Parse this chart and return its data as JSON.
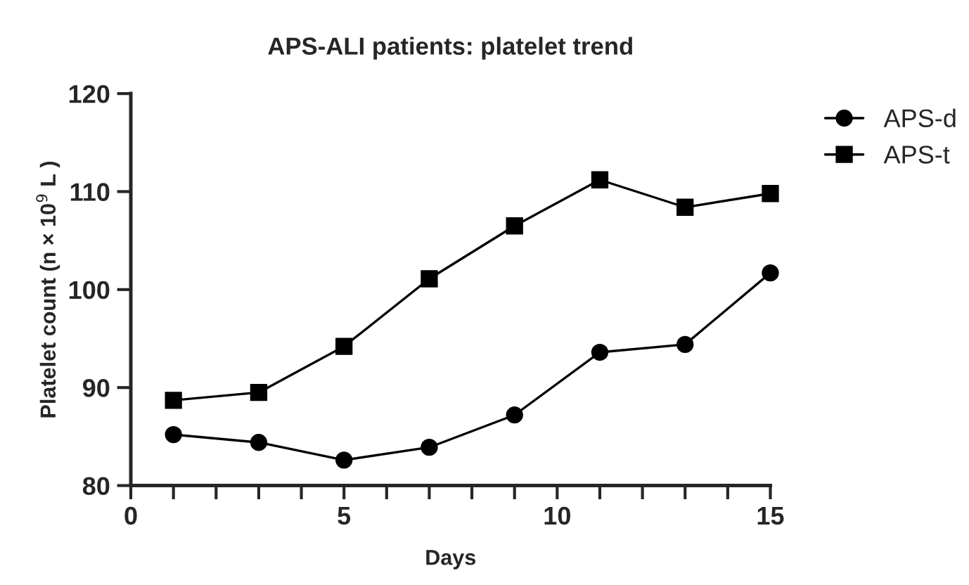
{
  "chart_data": {
    "type": "line",
    "title": "APS-ALI patients: platelet trend",
    "xlabel": "Days",
    "ylabel": "Platelet count (n × 10$^{9}$ L )",
    "x": [
      1,
      3,
      5,
      7,
      9,
      11,
      13,
      15
    ],
    "series": [
      {
        "name": "APS-d",
        "color": "#000000",
        "marker": "circle",
        "values": [
          85.2,
          84.4,
          82.6,
          83.9,
          87.2,
          93.6,
          94.4,
          101.7
        ]
      },
      {
        "name": "APS-t",
        "color": "#000000",
        "marker": "square",
        "values": [
          88.7,
          89.5,
          94.2,
          101.1,
          106.5,
          111.2,
          108.4,
          109.8
        ]
      }
    ],
    "xlim": [
      0,
      15
    ],
    "ylim": [
      80,
      120
    ],
    "xticks": [
      0,
      {
        "value": 1,
        "label": null
      },
      {
        "value": 2,
        "label": null
      },
      {
        "value": 3,
        "label": null
      },
      {
        "value": 4,
        "label": null
      },
      5,
      {
        "value": 6,
        "label": null
      },
      {
        "value": 7,
        "label": null
      },
      {
        "value": 8,
        "label": null
      },
      {
        "value": 9,
        "label": null
      },
      10,
      {
        "value": 11,
        "label": null
      },
      {
        "value": 12,
        "label": null
      },
      {
        "value": 13,
        "label": null
      },
      {
        "value": 14,
        "label": null
      },
      15
    ],
    "yticks": [
      80,
      90,
      100,
      110,
      120
    ],
    "grid": false,
    "legend": "right",
    "line_style": "solid"
  }
}
